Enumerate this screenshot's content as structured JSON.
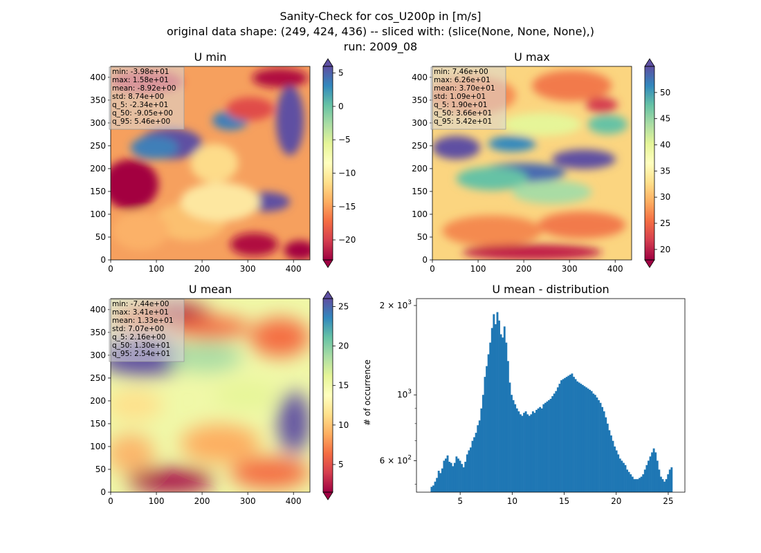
{
  "figure": {
    "title_lines": [
      "Sanity-Check for cos_U200p in [m/s]",
      "original data shape: (249, 424, 436) -- sliced with: (slice(None, None, None),)",
      "run: 2009_08"
    ]
  },
  "chart_data": [
    {
      "type": "heatmap",
      "title": "U min",
      "xlim": [
        0,
        436
      ],
      "ylim": [
        0,
        424
      ],
      "x_ticks": [
        0,
        100,
        200,
        300,
        400
      ],
      "y_ticks": [
        0,
        50,
        100,
        150,
        200,
        250,
        300,
        350,
        400
      ],
      "colormap": "Spectral",
      "colorbar": {
        "range": [
          -23,
          6
        ],
        "ticks": [
          5,
          0,
          -5,
          -10,
          -15,
          -20
        ],
        "tick_labels": [
          "5",
          "0",
          "−5",
          "−10",
          "−15",
          "−20"
        ],
        "extend": "both"
      },
      "stats": [
        "min: -3.98e+01",
        "max: 1.58e+01",
        "mean: -8.92e+00",
        "std: 8.74e+00",
        "q_5: -2.34e+01",
        "q_50: -9.05e+00",
        "q_95: 5.46e+00"
      ]
    },
    {
      "type": "heatmap",
      "title": "U max",
      "xlim": [
        0,
        436
      ],
      "ylim": [
        0,
        424
      ],
      "x_ticks": [
        0,
        100,
        200,
        300,
        400
      ],
      "y_ticks": [
        0,
        50,
        100,
        150,
        200,
        250,
        300,
        350,
        400
      ],
      "colormap": "Spectral",
      "colorbar": {
        "range": [
          18,
          55
        ],
        "ticks": [
          50,
          45,
          40,
          35,
          30,
          25,
          20
        ],
        "tick_labels": [
          "50",
          "45",
          "40",
          "35",
          "30",
          "25",
          "20"
        ],
        "extend": "both"
      },
      "stats": [
        "min: 7.46e+00",
        "max: 6.26e+01",
        "mean: 3.70e+01",
        "std: 1.09e+01",
        "q_5: 1.90e+01",
        "q_50: 3.66e+01",
        "q_95: 5.42e+01"
      ]
    },
    {
      "type": "heatmap",
      "title": "U mean",
      "xlim": [
        0,
        436
      ],
      "ylim": [
        0,
        424
      ],
      "x_ticks": [
        0,
        100,
        200,
        300,
        400
      ],
      "y_ticks": [
        0,
        50,
        100,
        150,
        200,
        250,
        300,
        350,
        400
      ],
      "colormap": "Spectral",
      "colorbar": {
        "range": [
          1.5,
          26
        ],
        "ticks": [
          25,
          20,
          15,
          10,
          5
        ],
        "tick_labels": [
          "25",
          "20",
          "15",
          "10",
          "5"
        ],
        "extend": "both"
      },
      "stats": [
        "min: -7.44e+00",
        "max: 3.41e+01",
        "mean: 1.33e+01",
        "std: 7.07e+00",
        "q_5: 2.16e+00",
        "q_50: 1.30e+01",
        "q_95: 2.54e+01"
      ]
    },
    {
      "type": "bar",
      "title": "U mean - distribution",
      "ylabel": "# of occurrence",
      "xlim": [
        0.8,
        26.6
      ],
      "ylim": [
        470,
        2110
      ],
      "y_scale": "log",
      "x_ticks": [
        5,
        10,
        15,
        20,
        25
      ],
      "y_major_ticks": [
        {
          "value": 600,
          "base": "6",
          "exp": "2"
        },
        {
          "value": 1000,
          "base": "10",
          "exp": "3"
        },
        {
          "value": 2000,
          "base": "2",
          "exp": "3"
        }
      ],
      "bin_range": [
        2.16,
        25.4
      ],
      "color": "#1f77b4",
      "values": [
        490,
        495,
        510,
        525,
        555,
        545,
        565,
        600,
        610,
        625,
        595,
        590,
        575,
        590,
        620,
        610,
        600,
        585,
        570,
        595,
        630,
        650,
        665,
        700,
        720,
        745,
        790,
        820,
        900,
        1000,
        1150,
        1250,
        1370,
        1500,
        1680,
        1870,
        1730,
        1900,
        1780,
        1600,
        1560,
        1700,
        1500,
        1300,
        1100,
        1000,
        960,
        930,
        900,
        880,
        860,
        850,
        870,
        880,
        860,
        850,
        860,
        880,
        870,
        890,
        900,
        910,
        900,
        930,
        940,
        950,
        960,
        970,
        990,
        1010,
        1030,
        1060,
        1090,
        1120,
        1130,
        1140,
        1150,
        1160,
        1170,
        1180,
        1150,
        1130,
        1110,
        1100,
        1090,
        1080,
        1070,
        1060,
        1050,
        1040,
        1030,
        1010,
        1000,
        980,
        960,
        940,
        910,
        880,
        840,
        800,
        760,
        730,
        700,
        670,
        650,
        630,
        610,
        600,
        590,
        580,
        560,
        550,
        540,
        530,
        520,
        520,
        520,
        525,
        530,
        540,
        560,
        580,
        600,
        620,
        640,
        660,
        640,
        600,
        560,
        530,
        520,
        510,
        520,
        540,
        560,
        570
      ]
    }
  ]
}
